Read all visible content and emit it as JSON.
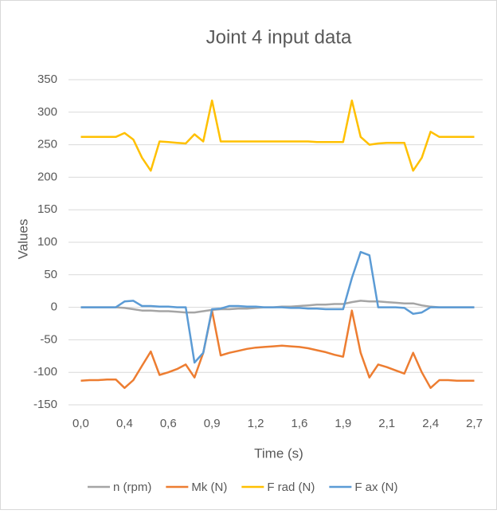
{
  "chart_data": {
    "type": "line",
    "title": "Joint 4 input data",
    "x_label": "Time (s)",
    "y_label": "Values",
    "categories": [
      "0,0",
      null,
      null,
      null,
      null,
      "0,4",
      null,
      null,
      null,
      null,
      "0,6",
      null,
      null,
      null,
      null,
      "0,9",
      null,
      null,
      null,
      null,
      "1,2",
      null,
      null,
      null,
      null,
      "1,6",
      null,
      null,
      null,
      null,
      "1,9",
      null,
      null,
      null,
      null,
      "2,1",
      null,
      null,
      null,
      null,
      "2,4",
      null,
      null,
      null,
      null,
      "2,7"
    ],
    "series": [
      {
        "name": "n (rpm)",
        "color": "#a5a5a5",
        "values": [
          0,
          0,
          0,
          0,
          0,
          -1,
          -3,
          -5,
          -5,
          -6,
          -6,
          -7,
          -8,
          -8,
          -6,
          -4,
          -3,
          -3,
          -2,
          -2,
          -1,
          0,
          0,
          1,
          1,
          2,
          3,
          4,
          4,
          5,
          5,
          8,
          10,
          9,
          9,
          8,
          7,
          6,
          6,
          3,
          1,
          0,
          0,
          0,
          0,
          0
        ]
      },
      {
        "name": "Mk (N)",
        "color": "#ed7d31",
        "values": [
          -113,
          -112,
          -112,
          -111,
          -111,
          -124,
          -112,
          -90,
          -68,
          -104,
          -100,
          -95,
          -88,
          -108,
          -70,
          -5,
          -74,
          -70,
          -67,
          -64,
          -62,
          -61,
          -60,
          -59,
          -60,
          -61,
          -63,
          -66,
          -69,
          -73,
          -76,
          -5,
          -70,
          -108,
          -88,
          -92,
          -97,
          -102,
          -70,
          -100,
          -124,
          -112,
          -112,
          -113,
          -113,
          -113
        ]
      },
      {
        "name": "F rad (N)",
        "color": "#ffc000",
        "values": [
          262,
          262,
          262,
          262,
          262,
          268,
          258,
          230,
          210,
          255,
          254,
          253,
          252,
          266,
          255,
          318,
          255,
          255,
          255,
          255,
          255,
          255,
          255,
          255,
          255,
          255,
          255,
          254,
          254,
          254,
          254,
          318,
          262,
          250,
          252,
          253,
          253,
          253,
          210,
          230,
          270,
          262,
          262,
          262,
          262,
          262
        ]
      },
      {
        "name": "F ax (N)",
        "color": "#5b9bd5",
        "values": [
          0,
          0,
          0,
          0,
          0,
          9,
          10,
          2,
          2,
          1,
          1,
          0,
          0,
          -85,
          -70,
          -3,
          -2,
          2,
          2,
          1,
          1,
          0,
          0,
          0,
          -1,
          -1,
          -2,
          -2,
          -3,
          -3,
          -3,
          45,
          85,
          80,
          0,
          0,
          0,
          -1,
          -10,
          -8,
          0,
          0,
          0,
          0,
          0,
          0
        ]
      }
    ],
    "ylim": [
      -150,
      350
    ],
    "yticks": [
      -150,
      -100,
      -50,
      0,
      50,
      100,
      150,
      200,
      250,
      300,
      350
    ],
    "grid": true,
    "legend": "bottom"
  }
}
